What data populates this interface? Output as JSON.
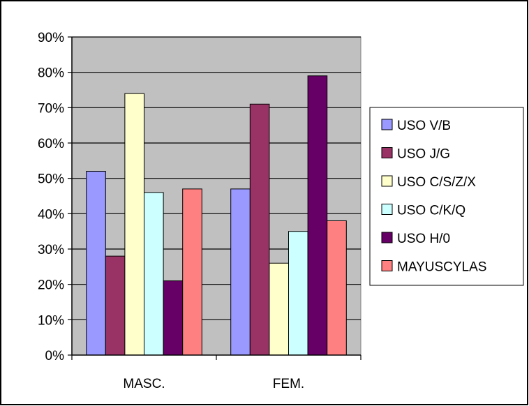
{
  "chart_data": {
    "type": "bar",
    "title": "",
    "xlabel": "",
    "ylabel": "",
    "categories": [
      "MASC.",
      "FEM."
    ],
    "y_ticks": [
      "0%",
      "10%",
      "20%",
      "30%",
      "40%",
      "50%",
      "60%",
      "70%",
      "80%",
      "90%"
    ],
    "ylim": [
      0,
      90
    ],
    "unit": "%",
    "grid": true,
    "legend_position": "right",
    "plot_background": "#c0c0c0",
    "series": [
      {
        "name": "USO V/B",
        "color": "#9999ff",
        "values": [
          52,
          47
        ]
      },
      {
        "name": "USO J/G",
        "color": "#993366",
        "values": [
          28,
          71
        ]
      },
      {
        "name": "USO C/S/Z/X",
        "color": "#ffffcc",
        "values": [
          74,
          26
        ]
      },
      {
        "name": "USO C/K/Q",
        "color": "#ccffff",
        "values": [
          46,
          35
        ]
      },
      {
        "name": "USO H/0",
        "color": "#660066",
        "values": [
          21,
          79
        ]
      },
      {
        "name": "MAYUSCYLAS",
        "color": "#ff8080",
        "values": [
          47,
          38
        ]
      }
    ]
  }
}
